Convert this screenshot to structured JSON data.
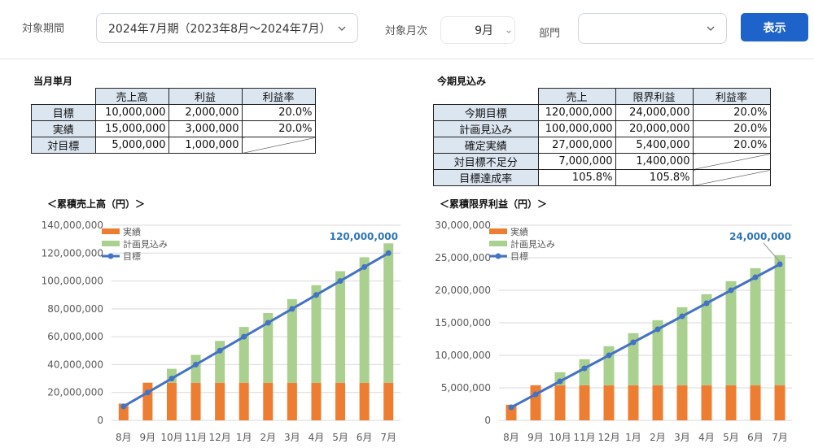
{
  "filters": {
    "period_label": "対象期間",
    "period_value": "2024年7月期（2023年8月～2024年7月）",
    "month_label": "対象月次",
    "month_value": "9月",
    "dept_label": "部門",
    "dept_value": "",
    "show_button": "表示"
  },
  "monthly": {
    "title": "当月単月",
    "headers": [
      "売上高",
      "利益",
      "利益率"
    ],
    "rows": [
      {
        "label": "目標",
        "sales": "10,000,000",
        "profit": "2,000,000",
        "rate": "20.0%"
      },
      {
        "label": "実績",
        "sales": "15,000,000",
        "profit": "3,000,000",
        "rate": "20.0%"
      },
      {
        "label": "対目標",
        "sales": "5,000,000",
        "profit": "1,000,000",
        "rate": ""
      }
    ]
  },
  "forecast": {
    "title": "今期見込み",
    "headers": [
      "売上",
      "限界利益",
      "利益率"
    ],
    "rows": [
      {
        "label": "今期目標",
        "sales": "120,000,000",
        "profit": "24,000,000",
        "rate": "20.0%"
      },
      {
        "label": "計画見込み",
        "sales": "100,000,000",
        "profit": "20,000,000",
        "rate": "20.0%"
      },
      {
        "label": "確定実績",
        "sales": "27,000,000",
        "profit": "5,400,000",
        "rate": "20.0%"
      },
      {
        "label": "対目標不足分",
        "sales": "7,000,000",
        "profit": "1,400,000",
        "rate": ""
      },
      {
        "label": "目標達成率",
        "sales": "105.8%",
        "profit": "105.8%",
        "rate": ""
      }
    ]
  },
  "chart_data": [
    {
      "type": "bar",
      "title": "＜累積売上高（円）＞",
      "categories": [
        "8月",
        "9月",
        "10月",
        "11月",
        "12月",
        "1月",
        "2月",
        "3月",
        "4月",
        "5月",
        "6月",
        "7月"
      ],
      "ylim": [
        0,
        140000000
      ],
      "yticks": [
        "0",
        "20,000,000",
        "40,000,000",
        "60,000,000",
        "80,000,000",
        "100,000,000",
        "120,000,000",
        "140,000,000"
      ],
      "series": [
        {
          "name": "実績",
          "kind": "stack",
          "color": "#ed7d31",
          "values": [
            12000000,
            27000000,
            27000000,
            27000000,
            27000000,
            27000000,
            27000000,
            27000000,
            27000000,
            27000000,
            27000000,
            27000000
          ]
        },
        {
          "name": "計画見込み",
          "kind": "stack",
          "color": "#a9d08e",
          "values": [
            0,
            0,
            10000000,
            20000000,
            30000000,
            40000000,
            50000000,
            60000000,
            70000000,
            80000000,
            90000000,
            100000000
          ]
        },
        {
          "name": "目標",
          "kind": "line",
          "color": "#4472c4",
          "values": [
            10000000,
            20000000,
            30000000,
            40000000,
            50000000,
            60000000,
            70000000,
            80000000,
            90000000,
            100000000,
            110000000,
            120000000
          ]
        }
      ],
      "annotation": "120,000,000"
    },
    {
      "type": "bar",
      "title": "＜累積限界利益（円）＞",
      "categories": [
        "8月",
        "9月",
        "10月",
        "11月",
        "12月",
        "1月",
        "2月",
        "3月",
        "4月",
        "5月",
        "6月",
        "7月"
      ],
      "ylim": [
        0,
        30000000
      ],
      "yticks": [
        "0",
        "5,000,000",
        "10,000,000",
        "15,000,000",
        "20,000,000",
        "25,000,000",
        "30,000,000"
      ],
      "series": [
        {
          "name": "実績",
          "kind": "stack",
          "color": "#ed7d31",
          "values": [
            2400000,
            5400000,
            5400000,
            5400000,
            5400000,
            5400000,
            5400000,
            5400000,
            5400000,
            5400000,
            5400000,
            5400000
          ]
        },
        {
          "name": "計画見込み",
          "kind": "stack",
          "color": "#a9d08e",
          "values": [
            0,
            0,
            2000000,
            4000000,
            6000000,
            8000000,
            10000000,
            12000000,
            14000000,
            16000000,
            18000000,
            20000000
          ]
        },
        {
          "name": "目標",
          "kind": "line",
          "color": "#4472c4",
          "values": [
            2000000,
            4000000,
            6000000,
            8000000,
            10000000,
            12000000,
            14000000,
            16000000,
            18000000,
            20000000,
            22000000,
            24000000
          ]
        }
      ],
      "annotation": "24,000,000"
    }
  ]
}
